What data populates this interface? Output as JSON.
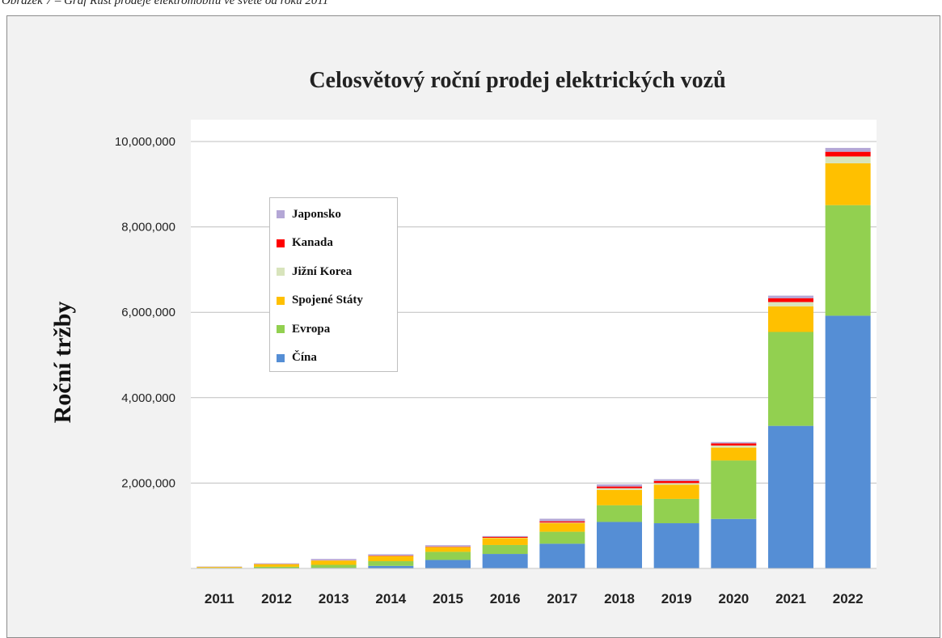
{
  "caption": "Obrázek 7 – Graf  Růst prodeje elektromobilů ve světě od roku 2011",
  "chart_data": {
    "type": "bar",
    "stacked": true,
    "title": "Celosvětový roční prodej elektrických vozů",
    "xlabel": "",
    "ylabel": "Roční tržby",
    "ylim": [
      0,
      10000000
    ],
    "yticks": [
      {
        "value": 2000000,
        "label": "2,000,000"
      },
      {
        "value": 4000000,
        "label": "4,000,000"
      },
      {
        "value": 6000000,
        "label": "6,000,000"
      },
      {
        "value": 8000000,
        "label": "8,000,000"
      },
      {
        "value": 10000000,
        "label": "10,000,000"
      }
    ],
    "grid": true,
    "legend_position": "upper-left",
    "categories": [
      "2011",
      "2012",
      "2013",
      "2014",
      "2015",
      "2016",
      "2017",
      "2018",
      "2019",
      "2020",
      "2021",
      "2022"
    ],
    "series": [
      {
        "name": "Čína",
        "color": "#558ed5",
        "values": [
          5000,
          10000,
          15000,
          60000,
          200000,
          340000,
          580000,
          1090000,
          1060000,
          1160000,
          3340000,
          5920000
        ]
      },
      {
        "name": "Evropa",
        "color": "#92d050",
        "values": [
          10000,
          30000,
          70000,
          110000,
          190000,
          210000,
          280000,
          390000,
          570000,
          1370000,
          2200000,
          2590000
        ]
      },
      {
        "name": "Spojené Státy",
        "color": "#ffc000",
        "values": [
          20000,
          60000,
          100000,
          120000,
          110000,
          160000,
          200000,
          360000,
          330000,
          300000,
          600000,
          980000
        ]
      },
      {
        "name": "Jižní Korea",
        "color": "#d8e4bc",
        "values": [
          1000,
          2000,
          3000,
          5000,
          5000,
          10000,
          15000,
          40000,
          40000,
          50000,
          100000,
          160000
        ]
      },
      {
        "name": "Kanada",
        "color": "#ff0000",
        "values": [
          1000,
          3000,
          5000,
          8000,
          10000,
          20000,
          30000,
          40000,
          50000,
          50000,
          90000,
          110000
        ]
      },
      {
        "name": "Japonsko",
        "color": "#b4a7d6",
        "values": [
          8000,
          15000,
          30000,
          30000,
          30000,
          20000,
          60000,
          50000,
          40000,
          30000,
          60000,
          90000
        ]
      }
    ],
    "legend_order": [
      "Japonsko",
      "Kanada",
      "Jižní Korea",
      "Spojené Státy",
      "Evropa",
      "Čína"
    ]
  }
}
